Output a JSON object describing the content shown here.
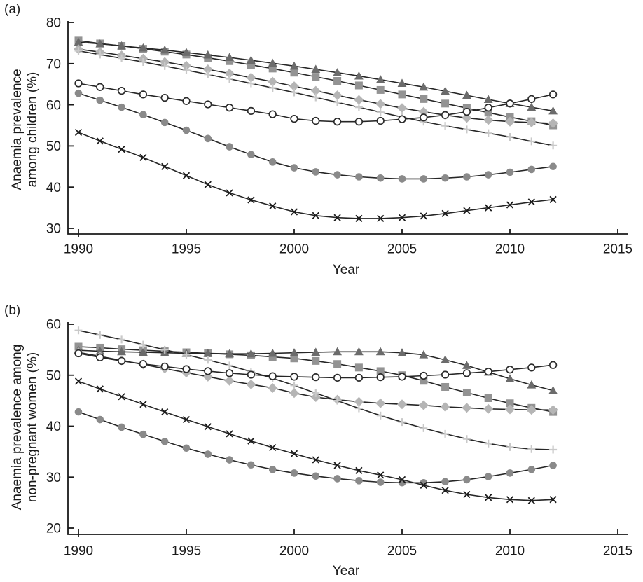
{
  "figure": {
    "panels": [
      {
        "letter": "(a)",
        "y_label_line1": "Anaemia prevalence",
        "y_label_line2": "among children (%)",
        "x_label": "Year",
        "x_tick_labels": [
          "1990",
          "1995",
          "2000",
          "2005",
          "2010",
          "2015"
        ],
        "y_tick_labels": [
          "30",
          "40",
          "50",
          "60",
          "70",
          "80"
        ]
      },
      {
        "letter": "(b)",
        "y_label_line1": "Anaemia prevalence among",
        "y_label_line2": "non-pregnant women (%)",
        "x_label": "Year",
        "x_tick_labels": [
          "1990",
          "1995",
          "2000",
          "2005",
          "2010",
          "2015"
        ],
        "y_tick_labels": [
          "20",
          "30",
          "40",
          "50",
          "60"
        ]
      }
    ],
    "colors": {
      "axis": "#1a1a1a",
      "line": "#262626",
      "square": "#939393",
      "triangle": "#6b6b6b",
      "diamond": "#b5b5b5",
      "plus": "#c9c9c9",
      "open_circle_stroke": "#2b2b2b",
      "filled_circle": "#8a8a8a",
      "x_cross": "#1a1a1a"
    }
  },
  "chart_data": [
    {
      "type": "line",
      "title": "(a)",
      "xlabel": "Year",
      "ylabel": "Anaemia prevalence among children (%)",
      "x": [
        1990,
        1991,
        1992,
        1993,
        1994,
        1995,
        1996,
        1997,
        1998,
        1999,
        2000,
        2001,
        2002,
        2003,
        2004,
        2005,
        2006,
        2007,
        2008,
        2009,
        2010,
        2011,
        2012
      ],
      "xlim": [
        1989.5,
        2015.6
      ],
      "ylim": [
        28.6,
        80.3
      ],
      "x_ticks": [
        1990,
        1995,
        2000,
        2005,
        2010,
        2015
      ],
      "y_ticks": [
        30,
        40,
        50,
        60,
        70,
        80
      ],
      "grid": false,
      "legend": "none",
      "series": [
        {
          "name": "filled-square",
          "marker": "square",
          "color": "#939393",
          "values": [
            75.6,
            74.9,
            74.3,
            73.6,
            72.9,
            72.2,
            71.4,
            70.6,
            69.7,
            68.8,
            67.8,
            66.8,
            65.8,
            64.7,
            63.6,
            62.5,
            61.4,
            60.3,
            59.2,
            58.1,
            57.0,
            56.0,
            55.0
          ]
        },
        {
          "name": "filled-triangle",
          "marker": "triangle",
          "color": "#6b6b6b",
          "values": [
            75.2,
            74.8,
            74.3,
            73.8,
            73.3,
            72.7,
            72.1,
            71.5,
            70.8,
            70.1,
            69.4,
            68.6,
            67.8,
            67.0,
            66.1,
            65.2,
            64.3,
            63.3,
            62.3,
            61.3,
            60.3,
            59.4,
            58.5
          ]
        },
        {
          "name": "filled-diamond",
          "marker": "diamond",
          "color": "#b5b5b5",
          "values": [
            73.5,
            72.8,
            72.0,
            71.2,
            70.4,
            69.5,
            68.6,
            67.6,
            66.6,
            65.6,
            64.5,
            63.4,
            62.3,
            61.2,
            60.2,
            59.2,
            58.3,
            57.5,
            56.8,
            56.3,
            55.9,
            55.7,
            55.5
          ]
        },
        {
          "name": "plus",
          "marker": "plus",
          "color": "#c9c9c9",
          "values": [
            73.1,
            72.2,
            71.3,
            70.4,
            69.4,
            68.4,
            67.4,
            66.3,
            65.2,
            64.1,
            63.0,
            61.8,
            60.6,
            59.4,
            58.2,
            57.0,
            55.9,
            54.9,
            54.0,
            53.1,
            52.2,
            51.1,
            50.1
          ]
        },
        {
          "name": "open-circle",
          "marker": "circle-open",
          "color": "#2b2b2b",
          "values": [
            65.2,
            64.3,
            63.4,
            62.5,
            61.7,
            60.9,
            60.1,
            59.3,
            58.5,
            57.7,
            56.6,
            56.1,
            55.9,
            55.9,
            56.1,
            56.5,
            56.9,
            57.5,
            58.3,
            59.3,
            60.3,
            61.4,
            62.5
          ]
        },
        {
          "name": "filled-circle",
          "marker": "circle",
          "color": "#8a8a8a",
          "values": [
            62.8,
            61.1,
            59.4,
            57.6,
            55.7,
            53.8,
            51.8,
            49.8,
            47.9,
            46.1,
            44.7,
            43.7,
            43.0,
            42.5,
            42.2,
            42.0,
            42.0,
            42.2,
            42.5,
            43.0,
            43.6,
            44.3,
            45.0
          ]
        },
        {
          "name": "x-cross",
          "marker": "x",
          "color": "#1a1a1a",
          "values": [
            53.3,
            51.2,
            49.2,
            47.2,
            45.0,
            42.8,
            40.6,
            38.6,
            36.9,
            35.4,
            34.0,
            33.1,
            32.6,
            32.4,
            32.4,
            32.6,
            33.0,
            33.6,
            34.3,
            35.0,
            35.7,
            36.4,
            37.0
          ]
        }
      ]
    },
    {
      "type": "line",
      "title": "(b)",
      "xlabel": "Year",
      "ylabel": "Anaemia prevalence among non-pregnant women (%)",
      "x": [
        1990,
        1991,
        1992,
        1993,
        1994,
        1995,
        1996,
        1997,
        1998,
        1999,
        2000,
        2001,
        2002,
        2003,
        2004,
        2005,
        2006,
        2007,
        2008,
        2009,
        2010,
        2011,
        2012
      ],
      "xlim": [
        1989.5,
        2015.6
      ],
      "ylim": [
        18.8,
        60.4
      ],
      "x_ticks": [
        1990,
        1995,
        2000,
        2005,
        2010,
        2015
      ],
      "y_ticks": [
        20,
        30,
        40,
        50,
        60
      ],
      "grid": false,
      "legend": "none",
      "series": [
        {
          "name": "filled-square",
          "marker": "square",
          "color": "#939393",
          "values": [
            55.6,
            55.4,
            55.1,
            54.9,
            54.7,
            54.5,
            54.3,
            54.1,
            53.9,
            53.6,
            53.3,
            52.8,
            52.2,
            51.5,
            50.8,
            50.0,
            48.9,
            47.7,
            46.6,
            45.5,
            44.5,
            43.6,
            42.8
          ]
        },
        {
          "name": "filled-triangle",
          "marker": "triangle",
          "color": "#6b6b6b",
          "values": [
            54.9,
            54.7,
            54.6,
            54.5,
            54.4,
            54.3,
            54.3,
            54.2,
            54.2,
            54.3,
            54.4,
            54.5,
            54.6,
            54.6,
            54.6,
            54.4,
            54.0,
            53.0,
            51.9,
            50.6,
            49.3,
            48.1,
            47.0
          ]
        },
        {
          "name": "filled-diamond",
          "marker": "diamond",
          "color": "#b5b5b5",
          "values": [
            54.5,
            53.7,
            52.9,
            52.1,
            51.3,
            50.5,
            49.7,
            48.9,
            48.2,
            47.5,
            46.5,
            45.7,
            45.2,
            44.8,
            44.5,
            44.3,
            44.1,
            43.8,
            43.6,
            43.4,
            43.3,
            43.2,
            43.2
          ]
        },
        {
          "name": "plus",
          "marker": "plus",
          "color": "#c9c9c9",
          "values": [
            58.8,
            57.9,
            57.0,
            56.0,
            55.0,
            54.0,
            53.0,
            51.9,
            50.7,
            49.4,
            48.0,
            46.5,
            45.0,
            43.5,
            42.1,
            40.8,
            39.6,
            38.5,
            37.5,
            36.6,
            35.9,
            35.5,
            35.4
          ]
        },
        {
          "name": "open-circle",
          "marker": "circle-open",
          "color": "#2b2b2b",
          "values": [
            54.3,
            53.5,
            52.8,
            52.2,
            51.7,
            51.2,
            50.8,
            50.4,
            50.1,
            49.8,
            49.7,
            49.6,
            49.5,
            49.5,
            49.6,
            49.7,
            49.9,
            50.1,
            50.4,
            50.7,
            51.1,
            51.5,
            52.0
          ]
        },
        {
          "name": "filled-circle",
          "marker": "circle",
          "color": "#8a8a8a",
          "values": [
            42.8,
            41.3,
            39.8,
            38.4,
            37.0,
            35.7,
            34.5,
            33.4,
            32.4,
            31.5,
            30.8,
            30.2,
            29.7,
            29.3,
            29.0,
            28.9,
            28.9,
            29.1,
            29.5,
            30.1,
            30.8,
            31.5,
            32.3
          ]
        },
        {
          "name": "x-cross",
          "marker": "x",
          "color": "#1a1a1a",
          "values": [
            48.8,
            47.3,
            45.8,
            44.3,
            42.8,
            41.3,
            39.9,
            38.5,
            37.1,
            35.8,
            34.6,
            33.4,
            32.3,
            31.3,
            30.4,
            29.5,
            28.4,
            27.4,
            26.6,
            26.0,
            25.6,
            25.4,
            25.6
          ]
        }
      ]
    }
  ]
}
